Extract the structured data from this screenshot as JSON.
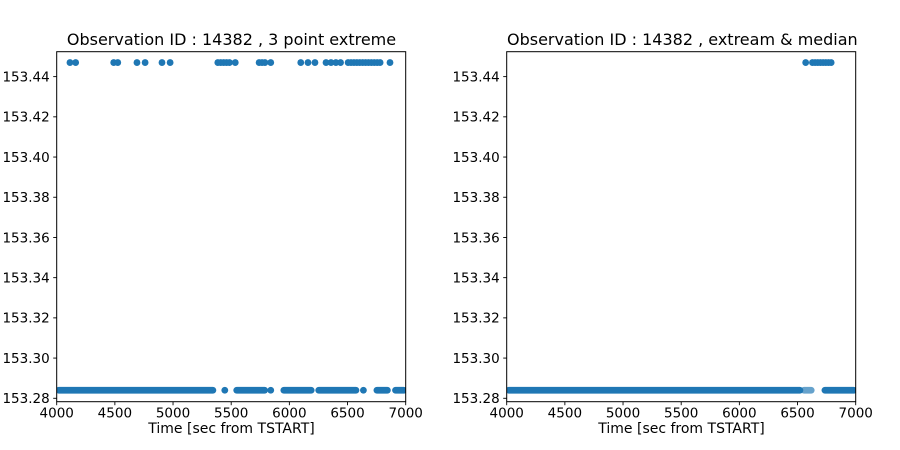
{
  "figure": {
    "background": "#ffffff",
    "axis_color": "#000000",
    "tick_label_color": "#000000"
  },
  "chart_data": [
    {
      "type": "scatter",
      "title": "Observation ID : 14382 , 3 point extreme",
      "xlabel": "Time [sec from TSTART]",
      "ylabel": "",
      "grid": false,
      "legend": null,
      "marker_color": "#1f77b4",
      "marker_radius_px": 3.4,
      "xlim": [
        4000,
        7000
      ],
      "ylim": [
        153.2783,
        153.4524
      ],
      "xticks": [
        4000,
        4500,
        5000,
        5500,
        6000,
        6500,
        7000
      ],
      "yticks": [
        153.28,
        153.3,
        153.32,
        153.34,
        153.36,
        153.38,
        153.4,
        153.42,
        153.44
      ],
      "top_value": 153.447,
      "bottom_value": 153.284,
      "top_points_x": [
        4114,
        4163,
        4490,
        4525,
        4690,
        4760,
        4905,
        4975,
        5385,
        5410,
        5435,
        5460,
        5485,
        5535,
        5740,
        5765,
        5790,
        5840,
        6098,
        6160,
        6220,
        6315,
        6358,
        6400,
        6440,
        6505,
        6530,
        6555,
        6580,
        6605,
        6630,
        6655,
        6680,
        6705,
        6730,
        6755,
        6780,
        6865
      ],
      "bottom_segments": [
        {
          "x0": 4000,
          "x1": 5360
        },
        {
          "x0": 5425,
          "x1": 5465
        },
        {
          "x0": 5530,
          "x1": 5805
        },
        {
          "x0": 5820,
          "x1": 5860
        },
        {
          "x0": 5935,
          "x1": 6205
        },
        {
          "x0": 6235,
          "x1": 6590
        },
        {
          "x0": 6625,
          "x1": 6648
        },
        {
          "x0": 6735,
          "x1": 6860
        },
        {
          "x0": 6895,
          "x1": 7000
        }
      ]
    },
    {
      "type": "scatter",
      "title": "Observation ID : 14382 , extream & median",
      "xlabel": "Time [sec from TSTART]",
      "ylabel": "",
      "grid": false,
      "legend": null,
      "marker_color": "#1f77b4",
      "marker_radius_px": 3.4,
      "xlim": [
        4000,
        7000
      ],
      "ylim": [
        153.2783,
        153.4524
      ],
      "xticks": [
        4000,
        4500,
        5000,
        5500,
        6000,
        6500,
        7000
      ],
      "yticks": [
        153.28,
        153.3,
        153.32,
        153.34,
        153.36,
        153.38,
        153.4,
        153.42,
        153.44
      ],
      "top_value": 153.447,
      "bottom_value": 153.284,
      "top_points_x": [
        6570,
        6628,
        6651,
        6674,
        6697,
        6720,
        6743,
        6766,
        6789
      ],
      "bottom_segments": [
        {
          "x0": 4000,
          "x1": 6538
        },
        {
          "x0": 6538,
          "x1": 6635,
          "sparse": true
        },
        {
          "x0": 6718,
          "x1": 7000
        }
      ]
    }
  ]
}
